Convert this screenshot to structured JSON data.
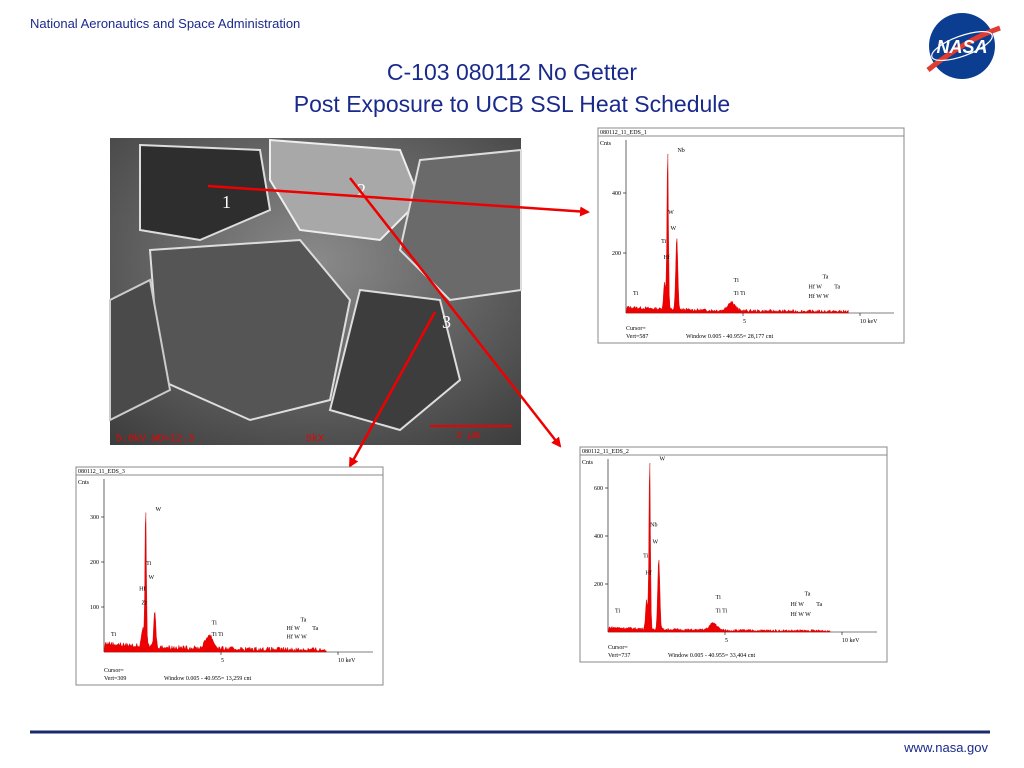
{
  "header": {
    "agency": "National Aeronautics and Space Administration",
    "logo": "NASA"
  },
  "title": [
    "C-103 080112 No Getter",
    "Post Exposure to UCB SSL Heat Schedule"
  ],
  "micrograph": {
    "points": [
      "1",
      "2",
      "3"
    ],
    "info": [
      "5.0kV  WD=12.3",
      "5kX",
      "2 µm"
    ]
  },
  "spectra": [
    {
      "name": "080112_11_EDS_1",
      "ylabel": "Cnts",
      "yticks": [
        "200",
        "400"
      ],
      "xticks": [
        "5",
        "10 keV"
      ],
      "peaks": [
        "Nb",
        "W",
        "W",
        "Ti",
        "Hf",
        "Ti",
        "Ti",
        "Ti  Ti",
        "Ta",
        "Hf  W",
        "Hf  W    W",
        "Ta"
      ],
      "cursor": "Cursor=",
      "vert": "Vert=587",
      "window": "Window 0.005 - 40.955=   28,177 cnt"
    },
    {
      "name": "080112_11_EDS_2",
      "ylabel": "Cnts",
      "yticks": [
        "200",
        "400",
        "600"
      ],
      "xticks": [
        "5",
        "10 keV"
      ],
      "peaks": [
        "W",
        "Nb",
        "W",
        "Ti",
        "Hf",
        "Ti",
        "Ti",
        "Ti  Ti",
        "Ta",
        "Hf  W",
        "Hf  W    W",
        "Ta"
      ],
      "cursor": "Cursor=",
      "vert": "Vert=737",
      "window": "Window 0.005 - 40.955=   33,404 cnt"
    },
    {
      "name": "080112_11_EDS_3",
      "ylabel": "Cnts",
      "yticks": [
        "100",
        "200",
        "300"
      ],
      "xticks": [
        "5",
        "10 keV"
      ],
      "peaks": [
        "W",
        "Ti",
        "W",
        "Hf",
        "Zr",
        "Ti",
        "Ti",
        "Ti  Ti",
        "Ta",
        "Hf  W",
        "Hf  W    W",
        "Ta"
      ],
      "cursor": "Cursor=",
      "vert": "Vert=309",
      "window": "Window 0.005 - 40.955=   13,259 cnt"
    }
  ],
  "footer": {
    "url": "www.nasa.gov"
  }
}
